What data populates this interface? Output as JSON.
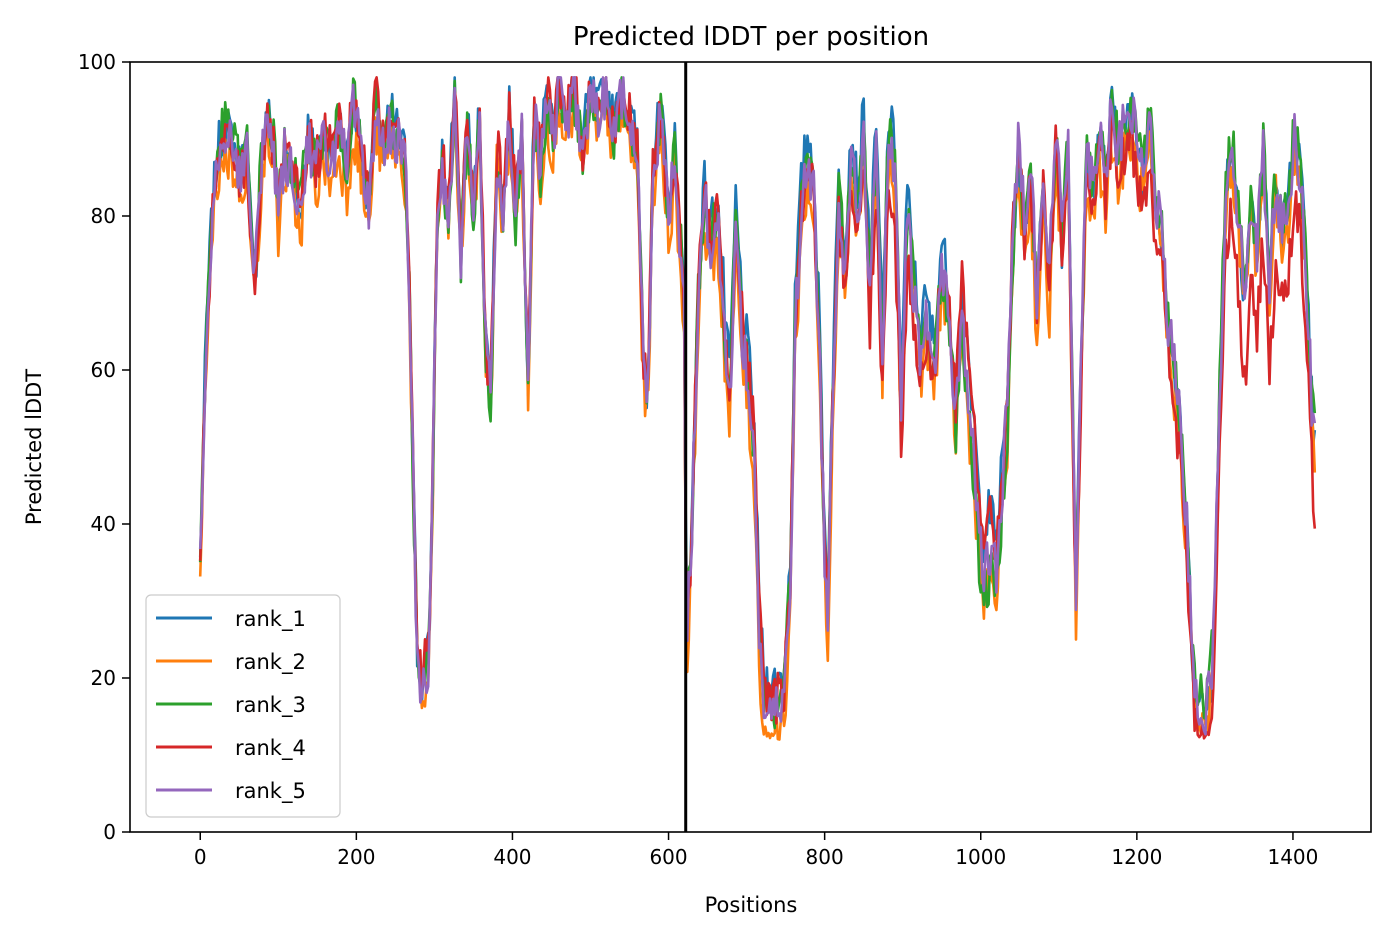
{
  "chart_data": {
    "type": "line",
    "title": "Predicted lDDT per position",
    "xlabel": "Positions",
    "ylabel": "Predicted lDDT",
    "xlim": [
      -90,
      1500
    ],
    "ylim": [
      0,
      100
    ],
    "xticks": [
      0,
      200,
      400,
      600,
      800,
      1000,
      1200,
      1400
    ],
    "yticks": [
      0,
      20,
      40,
      60,
      80,
      100
    ],
    "grid": false,
    "legend_position": "lower-left",
    "chain_break_x": 622,
    "chain_break_color": "#000000",
    "x_max": 1428,
    "series": [
      {
        "name": "rank_1",
        "color": "#1f77b4",
        "offsets": [
          [
            0,
            0
          ],
          [
            300,
            1.5
          ],
          [
            630,
            1
          ],
          [
            660,
            3
          ],
          [
            700,
            4
          ],
          [
            980,
            3
          ],
          [
            1010,
            6
          ],
          [
            1050,
            -2
          ],
          [
            1200,
            0
          ],
          [
            1428,
            0
          ]
        ]
      },
      {
        "name": "rank_2",
        "color": "#ff7f0e",
        "offsets": [
          [
            0,
            -4
          ],
          [
            60,
            -2
          ],
          [
            200,
            -3
          ],
          [
            300,
            -1
          ],
          [
            630,
            -3
          ],
          [
            700,
            -3
          ],
          [
            990,
            -3
          ],
          [
            1030,
            -4
          ],
          [
            1070,
            -6
          ],
          [
            1350,
            -2
          ],
          [
            1428,
            -2
          ]
        ]
      },
      {
        "name": "rank_3",
        "color": "#2ca02c",
        "offsets": [
          [
            0,
            0
          ],
          [
            60,
            1
          ],
          [
            200,
            1
          ],
          [
            300,
            0
          ],
          [
            500,
            -1
          ],
          [
            630,
            1
          ],
          [
            800,
            1
          ],
          [
            900,
            2
          ],
          [
            1000,
            -3
          ],
          [
            1200,
            1
          ],
          [
            1428,
            1
          ]
        ]
      },
      {
        "name": "rank_4",
        "color": "#d62728",
        "offsets": [
          [
            0,
            -2
          ],
          [
            270,
            3
          ],
          [
            300,
            2
          ],
          [
            630,
            0
          ],
          [
            720,
            3
          ],
          [
            900,
            -6
          ],
          [
            1000,
            6
          ],
          [
            1060,
            -3
          ],
          [
            1300,
            -5
          ],
          [
            1340,
            -12
          ],
          [
            1428,
            -8
          ]
        ]
      },
      {
        "name": "rank_5",
        "color": "#9467bd",
        "offsets": [
          [
            0,
            0
          ],
          [
            300,
            0
          ],
          [
            630,
            0
          ],
          [
            900,
            0
          ],
          [
            1428,
            0
          ]
        ]
      }
    ],
    "base_profile": [
      [
        0,
        35
      ],
      [
        3,
        47
      ],
      [
        8,
        66
      ],
      [
        15,
        80
      ],
      [
        22,
        88
      ],
      [
        30,
        91
      ],
      [
        40,
        90
      ],
      [
        50,
        86
      ],
      [
        60,
        88
      ],
      [
        68,
        72
      ],
      [
        72,
        75
      ],
      [
        80,
        90
      ],
      [
        88,
        92
      ],
      [
        95,
        88
      ],
      [
        100,
        80
      ],
      [
        108,
        88
      ],
      [
        118,
        86
      ],
      [
        128,
        80
      ],
      [
        138,
        90
      ],
      [
        148,
        86
      ],
      [
        158,
        90
      ],
      [
        168,
        87
      ],
      [
        178,
        91
      ],
      [
        188,
        86
      ],
      [
        196,
        94
      ],
      [
        205,
        89
      ],
      [
        215,
        80
      ],
      [
        225,
        94
      ],
      [
        235,
        88
      ],
      [
        245,
        92
      ],
      [
        255,
        89
      ],
      [
        263,
        86
      ],
      [
        268,
        70
      ],
      [
        273,
        45
      ],
      [
        278,
        22
      ],
      [
        283,
        17
      ],
      [
        293,
        22
      ],
      [
        298,
        45
      ],
      [
        303,
        78
      ],
      [
        310,
        86
      ],
      [
        318,
        80
      ],
      [
        326,
        95
      ],
      [
        334,
        75
      ],
      [
        342,
        92
      ],
      [
        350,
        80
      ],
      [
        358,
        93
      ],
      [
        366,
        62
      ],
      [
        372,
        56
      ],
      [
        380,
        88
      ],
      [
        388,
        80
      ],
      [
        396,
        93
      ],
      [
        404,
        80
      ],
      [
        412,
        90
      ],
      [
        420,
        58
      ],
      [
        428,
        93
      ],
      [
        436,
        86
      ],
      [
        444,
        95
      ],
      [
        452,
        90
      ],
      [
        460,
        97
      ],
      [
        470,
        93
      ],
      [
        480,
        96
      ],
      [
        490,
        88
      ],
      [
        500,
        96
      ],
      [
        510,
        92
      ],
      [
        520,
        97
      ],
      [
        530,
        90
      ],
      [
        540,
        96
      ],
      [
        550,
        92
      ],
      [
        560,
        88
      ],
      [
        568,
        60
      ],
      [
        573,
        56
      ],
      [
        580,
        86
      ],
      [
        590,
        93
      ],
      [
        600,
        80
      ],
      [
        608,
        88
      ],
      [
        614,
        78
      ],
      [
        620,
        68
      ],
      [
        623,
        24
      ],
      [
        630,
        40
      ],
      [
        638,
        70
      ],
      [
        646,
        82
      ],
      [
        654,
        76
      ],
      [
        662,
        80
      ],
      [
        670,
        68
      ],
      [
        678,
        55
      ],
      [
        686,
        78
      ],
      [
        694,
        65
      ],
      [
        702,
        58
      ],
      [
        710,
        48
      ],
      [
        716,
        26
      ],
      [
        722,
        16
      ],
      [
        735,
        15
      ],
      [
        748,
        17
      ],
      [
        756,
        32
      ],
      [
        762,
        65
      ],
      [
        770,
        80
      ],
      [
        778,
        87
      ],
      [
        786,
        83
      ],
      [
        794,
        60
      ],
      [
        800,
        36
      ],
      [
        804,
        28
      ],
      [
        810,
        55
      ],
      [
        818,
        82
      ],
      [
        826,
        74
      ],
      [
        834,
        88
      ],
      [
        842,
        80
      ],
      [
        850,
        90
      ],
      [
        858,
        70
      ],
      [
        866,
        88
      ],
      [
        874,
        62
      ],
      [
        882,
        90
      ],
      [
        890,
        85
      ],
      [
        898,
        56
      ],
      [
        906,
        80
      ],
      [
        914,
        70
      ],
      [
        922,
        62
      ],
      [
        930,
        66
      ],
      [
        940,
        60
      ],
      [
        950,
        74
      ],
      [
        960,
        66
      ],
      [
        968,
        54
      ],
      [
        976,
        68
      ],
      [
        984,
        56
      ],
      [
        992,
        48
      ],
      [
        998,
        38
      ],
      [
        1004,
        33
      ],
      [
        1012,
        36
      ],
      [
        1020,
        34
      ],
      [
        1028,
        46
      ],
      [
        1034,
        55
      ],
      [
        1040,
        75
      ],
      [
        1048,
        90
      ],
      [
        1056,
        80
      ],
      [
        1064,
        88
      ],
      [
        1072,
        70
      ],
      [
        1080,
        86
      ],
      [
        1088,
        72
      ],
      [
        1096,
        92
      ],
      [
        1104,
        78
      ],
      [
        1112,
        90
      ],
      [
        1118,
        56
      ],
      [
        1122,
        32
      ],
      [
        1128,
        60
      ],
      [
        1136,
        90
      ],
      [
        1144,
        84
      ],
      [
        1152,
        92
      ],
      [
        1160,
        86
      ],
      [
        1168,
        95
      ],
      [
        1176,
        88
      ],
      [
        1184,
        92
      ],
      [
        1192,
        94
      ],
      [
        1200,
        90
      ],
      [
        1208,
        86
      ],
      [
        1216,
        92
      ],
      [
        1224,
        82
      ],
      [
        1232,
        78
      ],
      [
        1240,
        66
      ],
      [
        1248,
        60
      ],
      [
        1256,
        52
      ],
      [
        1264,
        40
      ],
      [
        1272,
        22
      ],
      [
        1280,
        16
      ],
      [
        1290,
        16
      ],
      [
        1298,
        24
      ],
      [
        1306,
        56
      ],
      [
        1314,
        84
      ],
      [
        1322,
        90
      ],
      [
        1330,
        80
      ],
      [
        1338,
        70
      ],
      [
        1346,
        82
      ],
      [
        1354,
        76
      ],
      [
        1362,
        88
      ],
      [
        1370,
        72
      ],
      [
        1378,
        84
      ],
      [
        1386,
        78
      ],
      [
        1394,
        82
      ],
      [
        1402,
        90
      ],
      [
        1410,
        86
      ],
      [
        1418,
        70
      ],
      [
        1424,
        56
      ],
      [
        1428,
        50
      ]
    ],
    "noise": {
      "step": 2,
      "amplitude": 3.5,
      "seed": 7
    }
  }
}
